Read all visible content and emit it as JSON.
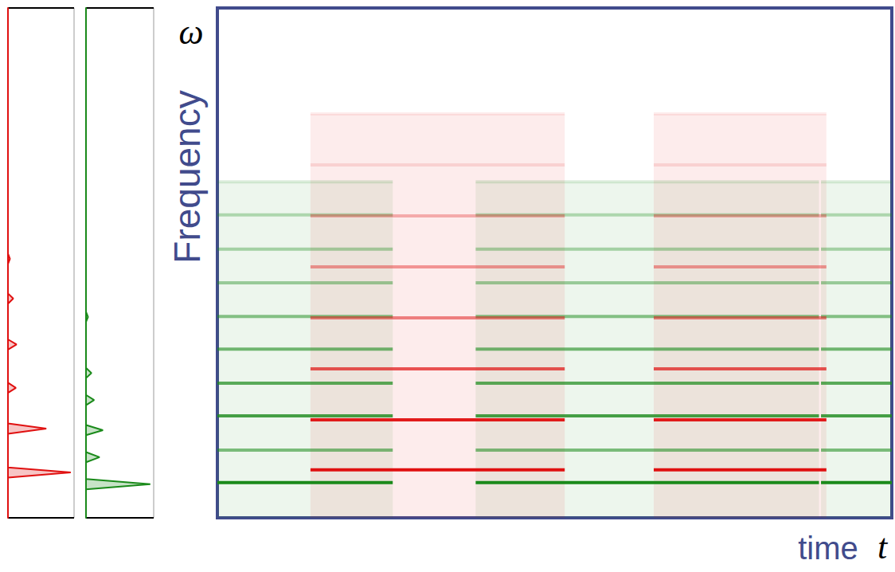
{
  "chart_data": [
    {
      "type": "spectrum",
      "color": "#e01010",
      "peaks": {
        "frequency": [
          8.9,
          17.5,
          25.5,
          34,
          43,
          50.8
        ],
        "amplitude": [
          0.95,
          0.58,
          0.12,
          0.13,
          0.08,
          0.03
        ]
      },
      "xlim": [
        0,
        1
      ],
      "ylim": [
        0,
        100
      ],
      "tick_labels": false
    },
    {
      "type": "spectrum",
      "color": "#1a8a1a",
      "peaks": {
        "frequency": [
          6.6,
          11.9,
          17.2,
          23.1,
          28.4,
          39.4
        ],
        "amplitude": [
          0.95,
          0.2,
          0.25,
          0.12,
          0.08,
          0.03
        ]
      },
      "xlim": [
        0,
        1
      ],
      "ylim": [
        0,
        100
      ],
      "tick_labels": false
    },
    {
      "type": "spectrogram",
      "x_label": "time",
      "x_symbol": "t",
      "y_label": "Frequency",
      "y_symbol": "ω",
      "xlim": [
        0,
        100
      ],
      "ylim": [
        0,
        100
      ],
      "tick_labels": false,
      "series": [
        {
          "color": "#1a8a1a",
          "frequencies": [
            6.9,
            13.3,
            20,
            26.4,
            33.1,
            39.5,
            46.1,
            52.7,
            59.4,
            65.9
          ],
          "strengths": [
            1,
            0.55,
            0.8,
            0.7,
            0.6,
            0.5,
            0.4,
            0.35,
            0.3,
            0.15
          ],
          "intervals": [
            [
              0,
              26
            ],
            [
              38.3,
              89.2
            ],
            [
              89.5,
              100
            ]
          ]
        },
        {
          "color": "#e01010",
          "frequencies": [
            9.4,
            19.2,
            29.2,
            39.2,
            49.2,
            59.2,
            69.2,
            79.2
          ],
          "strengths": [
            1,
            0.95,
            0.7,
            0.5,
            0.4,
            0.3,
            0.12,
            0.08
          ],
          "intervals": [
            [
              13.8,
              51.5
            ],
            [
              64.7,
              90.3
            ]
          ]
        }
      ]
    }
  ]
}
